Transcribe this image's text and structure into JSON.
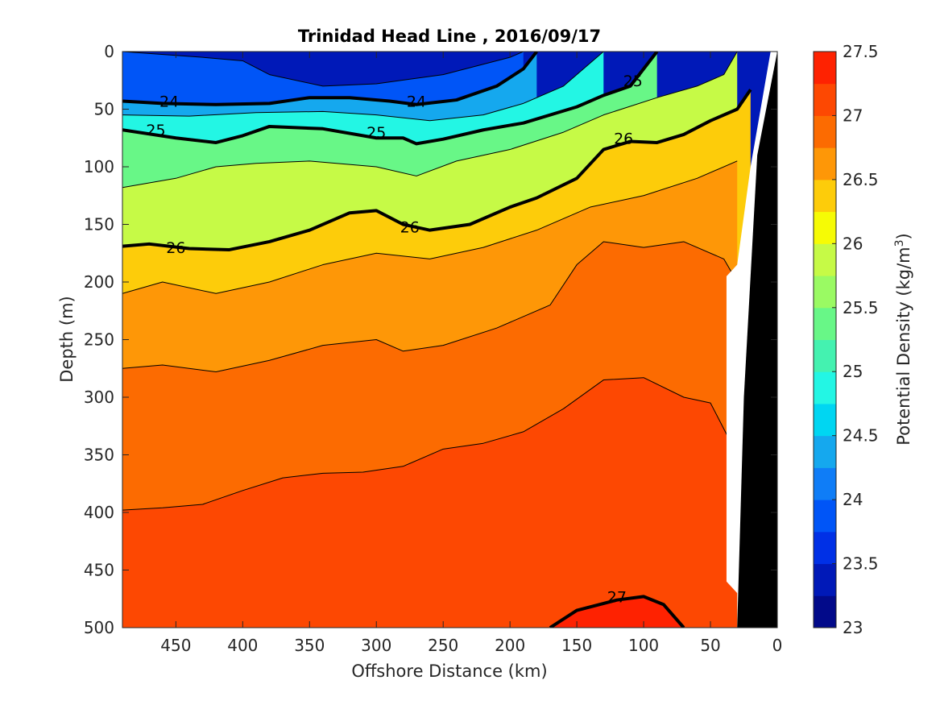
{
  "chart_data": {
    "type": "contour",
    "title": "Trinidad Head Line , 2016/09/17",
    "xlabel": "Offshore Distance (km)",
    "ylabel": "Depth (m)",
    "xlim": [
      490,
      0
    ],
    "ylim": [
      0,
      500
    ],
    "xticks": [
      "450",
      "400",
      "350",
      "300",
      "250",
      "200",
      "150",
      "100",
      "50",
      "0"
    ],
    "yticks": [
      "0",
      "50",
      "100",
      "150",
      "200",
      "250",
      "300",
      "350",
      "400",
      "450",
      "500"
    ],
    "x_reversed": true,
    "y_reversed": true,
    "colorbar": {
      "label": "Potential Density (kg/m",
      "label_superscript": "3",
      "label_close": ")",
      "range": [
        23,
        27.5
      ],
      "step": 0.25,
      "ticks": [
        "23",
        "23.5",
        "24",
        "24.5",
        "25",
        "25.5",
        "26",
        "26.5",
        "27",
        "27.5"
      ],
      "colors": [
        "#020a8a",
        "#0019b8",
        "#0030e6",
        "#0055f7",
        "#0f7df7",
        "#15a8ee",
        "#00d6f2",
        "#23f6e4",
        "#44f2b0",
        "#68f787",
        "#9afa63",
        "#c6fa46",
        "#f6fb05",
        "#fdcc0a",
        "#fe9707",
        "#fc6b01",
        "#fd4802",
        "#fe2201",
        "#f40e00",
        "#d80000",
        "#a90001"
      ]
    },
    "isopycnal_boundaries": [
      {
        "value": 23.5,
        "points": [
          [
            490,
            0
          ],
          [
            430,
            5
          ],
          [
            400,
            8
          ],
          [
            380,
            20
          ],
          [
            340,
            30
          ],
          [
            300,
            28
          ],
          [
            250,
            20
          ],
          [
            200,
            5
          ],
          [
            190,
            0
          ]
        ],
        "style": "thin"
      },
      {
        "value": 24,
        "points": [
          [
            490,
            43
          ],
          [
            460,
            45
          ],
          [
            420,
            46
          ],
          [
            380,
            45
          ],
          [
            350,
            40
          ],
          [
            320,
            40
          ],
          [
            290,
            43
          ],
          [
            270,
            46
          ],
          [
            240,
            42
          ],
          [
            210,
            30
          ],
          [
            190,
            15
          ],
          [
            180,
            0
          ]
        ],
        "style": "bold",
        "label": "24"
      },
      {
        "value": 24.5,
        "points": [
          [
            490,
            55
          ],
          [
            440,
            56
          ],
          [
            390,
            53
          ],
          [
            340,
            52
          ],
          [
            300,
            55
          ],
          [
            260,
            60
          ],
          [
            220,
            55
          ],
          [
            190,
            45
          ],
          [
            160,
            30
          ],
          [
            140,
            10
          ],
          [
            130,
            0
          ]
        ],
        "style": "thin"
      },
      {
        "value": 25,
        "points": [
          [
            490,
            68
          ],
          [
            450,
            75
          ],
          [
            420,
            79
          ],
          [
            400,
            73
          ],
          [
            380,
            65
          ],
          [
            340,
            67
          ],
          [
            300,
            75
          ],
          [
            280,
            75
          ],
          [
            270,
            80
          ],
          [
            250,
            76
          ],
          [
            220,
            68
          ],
          [
            190,
            62
          ],
          [
            150,
            48
          ],
          [
            130,
            38
          ],
          [
            110,
            30
          ],
          [
            90,
            0
          ]
        ],
        "style": "bold",
        "label": "25"
      },
      {
        "value": 25.5,
        "points": [
          [
            490,
            118
          ],
          [
            450,
            110
          ],
          [
            420,
            100
          ],
          [
            390,
            97
          ],
          [
            350,
            95
          ],
          [
            300,
            100
          ],
          [
            270,
            108
          ],
          [
            240,
            95
          ],
          [
            200,
            85
          ],
          [
            160,
            70
          ],
          [
            130,
            55
          ],
          [
            90,
            40
          ],
          [
            60,
            30
          ],
          [
            40,
            20
          ],
          [
            30,
            0
          ]
        ],
        "style": "thin"
      },
      {
        "value": 26,
        "points": [
          [
            490,
            169
          ],
          [
            470,
            167
          ],
          [
            440,
            171
          ],
          [
            410,
            172
          ],
          [
            380,
            165
          ],
          [
            350,
            155
          ],
          [
            320,
            140
          ],
          [
            300,
            138
          ],
          [
            280,
            150
          ],
          [
            260,
            155
          ],
          [
            230,
            150
          ],
          [
            200,
            135
          ],
          [
            180,
            127
          ],
          [
            150,
            110
          ],
          [
            130,
            85
          ],
          [
            110,
            78
          ],
          [
            90,
            79
          ],
          [
            70,
            72
          ],
          [
            50,
            60
          ],
          [
            30,
            50
          ],
          [
            20,
            33
          ]
        ],
        "style": "bold",
        "label": "26"
      },
      {
        "value": 26.25,
        "points": [
          [
            490,
            210
          ],
          [
            460,
            200
          ],
          [
            420,
            210
          ],
          [
            380,
            200
          ],
          [
            340,
            185
          ],
          [
            300,
            175
          ],
          [
            260,
            180
          ],
          [
            220,
            170
          ],
          [
            180,
            155
          ],
          [
            140,
            135
          ],
          [
            100,
            125
          ],
          [
            60,
            110
          ],
          [
            30,
            95
          ]
        ],
        "style": "thin"
      },
      {
        "value": 26.5,
        "points": [
          [
            490,
            275
          ],
          [
            460,
            272
          ],
          [
            420,
            278
          ],
          [
            380,
            268
          ],
          [
            340,
            255
          ],
          [
            300,
            250
          ],
          [
            280,
            260
          ],
          [
            250,
            255
          ],
          [
            210,
            240
          ],
          [
            170,
            220
          ],
          [
            150,
            185
          ],
          [
            130,
            165
          ],
          [
            100,
            170
          ],
          [
            70,
            165
          ],
          [
            40,
            180
          ],
          [
            30,
            200
          ]
        ],
        "style": "thin"
      },
      {
        "value": 26.75,
        "points": [
          [
            490,
            398
          ],
          [
            460,
            396
          ],
          [
            430,
            393
          ],
          [
            400,
            381
          ],
          [
            370,
            370
          ],
          [
            340,
            366
          ],
          [
            310,
            365
          ],
          [
            280,
            360
          ],
          [
            250,
            345
          ],
          [
            220,
            340
          ],
          [
            190,
            330
          ],
          [
            160,
            310
          ],
          [
            130,
            285
          ],
          [
            100,
            283
          ],
          [
            70,
            300
          ],
          [
            50,
            305
          ],
          [
            30,
            350
          ]
        ],
        "style": "thin"
      },
      {
        "value": 27,
        "points": [
          [
            170,
            500
          ],
          [
            150,
            485
          ],
          [
            120,
            476
          ],
          [
            100,
            473
          ],
          [
            85,
            480
          ],
          [
            70,
            500
          ]
        ],
        "style": "bold",
        "label": "27"
      }
    ]
  }
}
